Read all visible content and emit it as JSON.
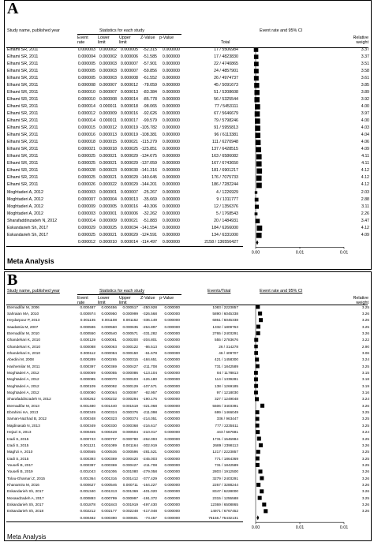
{
  "chart_data": [
    {
      "type": "forest",
      "panel": "A",
      "columns": {
        "study": "Study name, published year",
        "stats_group": "Statistics for each study",
        "event_rate": "Event rate",
        "lower": "Lower limit",
        "upper": "Upper limit",
        "z": "Z-Value",
        "p": "p-Value",
        "total": "Total",
        "plot_title": "Event rate and 95% CI",
        "weight": "Relative weight"
      },
      "x_ticks": [
        "0.00",
        "0.01",
        "0.01"
      ],
      "xlim": [
        0,
        0.01
      ],
      "rows": [
        [
          "Elhami SR, 2011",
          "0.000003",
          "0.000002",
          "0.000005",
          "-52.315",
          "0.000000",
          "17 / 5506984",
          "3.37"
        ],
        [
          "Elhami SR, 2011",
          "0.000004",
          "0.000002",
          "0.000006",
          "-51.585",
          "0.000000",
          "17 / 4823830",
          "3.37"
        ],
        [
          "Elhami SR, 2011",
          "0.000005",
          "0.000003",
          "0.000007",
          "-57.901",
          "0.000000",
          "22 / 4740865",
          "3.51"
        ],
        [
          "Elhami SR, 2011",
          "0.000005",
          "0.000003",
          "0.000007",
          "-59.856",
          "0.000000",
          "24 / 4857901",
          "3.58"
        ],
        [
          "Elhami SR, 2011",
          "0.000005",
          "0.000003",
          "0.000008",
          "-61.552",
          "0.000000",
          "26 / 4974737",
          "3.61"
        ],
        [
          "Elhami SR, 2011",
          "0.000008",
          "0.000007",
          "0.000012",
          "-78.059",
          "0.000000",
          "45 / 5091673",
          "3.85"
        ],
        [
          "Elhami SR, 2011",
          "0.000010",
          "0.000007",
          "0.000013",
          "-83.384",
          "0.000000",
          "51 / 5208608",
          "3.89"
        ],
        [
          "Elhami SR, 2011",
          "0.000010",
          "0.000008",
          "0.000014",
          "-85.778",
          "0.000000",
          "56 / 5325544",
          "3.92"
        ],
        [
          "Elhami SR, 2011",
          "0.000014",
          "0.000011",
          "0.000018",
          "-98.065",
          "0.000000",
          "77 / 5453111",
          "4.00"
        ],
        [
          "Elhami SR, 2011",
          "0.000012",
          "0.000009",
          "0.000016",
          "-92.626",
          "0.000000",
          "67 / 5646679",
          "3.97"
        ],
        [
          "Elhami SR, 2011",
          "0.000014",
          "0.000011",
          "0.000017",
          "-99.579",
          "0.000000",
          "79 / 5798246",
          "4.00"
        ],
        [
          "Elhami SR, 2011",
          "0.000015",
          "0.000012",
          "0.000019",
          "-105.782",
          "0.000000",
          "91 / 5955813",
          "4.03"
        ],
        [
          "Elhami SR, 2011",
          "0.000016",
          "0.000013",
          "0.000019",
          "-108.381",
          "0.000000",
          "96 / 6113381",
          "4.04"
        ],
        [
          "Elhami SR, 2011",
          "0.000018",
          "0.000015",
          "0.000021",
          "-115.279",
          "0.000000",
          "111 / 6270948",
          "4.06"
        ],
        [
          "Elhami SR, 2011",
          "0.000021",
          "0.000018",
          "0.000025",
          "-125.851",
          "0.000000",
          "137 / 6428515",
          "4.09"
        ],
        [
          "Elhami SR, 2011",
          "0.000025",
          "0.000021",
          "0.000029",
          "-134.675",
          "0.000000",
          "163 / 6586082",
          "4.11"
        ],
        [
          "Elhami SR, 2011",
          "0.000025",
          "0.000021",
          "0.000029",
          "-137.059",
          "0.000000",
          "167 / 6743650",
          "4.11"
        ],
        [
          "Elhami SR, 2011",
          "0.000028",
          "0.000023",
          "0.000030",
          "-141.316",
          "0.000000",
          "181 / 6901217",
          "4.12"
        ],
        [
          "Elhami SR, 2011",
          "0.000025",
          "0.000021",
          "0.000029",
          "-140.645",
          "0.000000",
          "176 / 7075733",
          "4.12"
        ],
        [
          "Elhami SR, 2011",
          "0.000026",
          "0.000022",
          "0.000029",
          "-144.201",
          "0.000000",
          "186 / 7282244",
          "4.12"
        ],
        [
          "Moghtaderi A, 2012",
          "0.000003",
          "0.000001",
          "0.000007",
          "-25.267",
          "0.000000",
          "4 / 1226929",
          "2.03"
        ],
        [
          "Moghtaderi A, 2012",
          "0.000007",
          "0.000004",
          "0.000013",
          "-35.669",
          "0.000000",
          "9 / 1311777",
          "2.88"
        ],
        [
          "Moghtaderi A, 2012",
          "0.000009",
          "0.000005",
          "0.000016",
          "-40.306",
          "0.000000",
          "12 / 1356376",
          "3.11"
        ],
        [
          "Moghtaderi A, 2012",
          "0.000003",
          "0.000001",
          "0.000006",
          "-32.262",
          "0.000000",
          "5 / 1768543",
          "2.26"
        ],
        [
          "Sharafaddinzadeh N, 2012",
          "0.000014",
          "0.000009",
          "0.000021",
          "-51.883",
          "0.000000",
          "20 / 1484931",
          "3.47"
        ],
        [
          "Eskandarieh Sh, 2017",
          "0.000029",
          "0.000025",
          "0.000034",
          "-141.554",
          "0.000000",
          "184 / 6266000",
          "4.12"
        ],
        [
          "Eskandarieh Sh, 2017",
          "0.000025",
          "0.000021",
          "0.000029",
          "-124.591",
          "0.000000",
          "134 / 6331000",
          "4.09"
        ],
        [
          "",
          "0.000012",
          "0.000010",
          "0.000014",
          "-114.497",
          "0.000000",
          "2158 / 136556427",
          ""
        ]
      ],
      "footer": "Meta Analysis"
    },
    {
      "type": "forest",
      "panel": "B",
      "columns": {
        "study": "Study name, published year",
        "stats_group": "Statistics for each study",
        "event_rate": "Event rate",
        "lower": "Lower limit",
        "upper": "Upper limit",
        "z": "Z-Value",
        "p": "p-Value",
        "total": "Events/Total",
        "plot_title": "Event rate and 95% CI",
        "weight": "Relative weight"
      },
      "x_ticks": [
        "0.00",
        "0.01",
        "0.01"
      ],
      "xlim": [
        0,
        0.01
      ],
      "rows": [
        [
          "Etemadifar M, 2006",
          "0.000487",
          "0.000456",
          "0.000517",
          "-250.928",
          "0.000000",
          "1083 / 2223857",
          "3.25"
        ],
        [
          "Sahraian MA, 2010",
          "0.000974",
          "0.000950",
          "0.000999",
          "-326.568",
          "0.000000",
          "5890 / 6045338",
          "3.26"
        ],
        [
          "Heydarpour P, 2013",
          "0.001135",
          "0.001108",
          "0.001162",
          "-336.149",
          "0.000000",
          "6861 / 6045338",
          "3.26"
        ],
        [
          "Saadatnia M, 2007",
          "0.000596",
          "0.000560",
          "0.000635",
          "-264.897",
          "0.000000",
          "1332 / 1809763",
          "3.25"
        ],
        [
          "Etemadifar M, 2010",
          "0.000550",
          "0.000540",
          "0.000571",
          "-331.282",
          "0.000000",
          "2765 / 2403291",
          "3.26"
        ],
        [
          "Ghandehari K, 2010",
          "0.000129",
          "0.000081",
          "0.000200",
          "-204.801",
          "0.000000",
          "555 / 2783676",
          "3.22"
        ],
        [
          "Ghandehari K, 2010",
          "0.000088",
          "0.000063",
          "0.000122",
          "-86.513",
          "0.000000",
          "26 / 314278",
          "2.90"
        ],
        [
          "Ghandehari K, 2010",
          "0.000112",
          "0.000084",
          "0.000150",
          "-61.678",
          "0.000000",
          "46 / 409707",
          "3.06"
        ],
        [
          "Abedini M, 2008",
          "0.000289",
          "0.000265",
          "0.000315",
          "-184.651",
          "0.000000",
          "421 / 1458300",
          "3.24"
        ],
        [
          "Hashemilar M, 2011",
          "0.000397",
          "0.000369",
          "0.000427",
          "-211.708",
          "0.000000",
          "731 / 1842589",
          "3.25"
        ],
        [
          "Moghtaderi A, 2012",
          "0.000069",
          "0.000055",
          "0.000086",
          "-113.104",
          "0.000000",
          "84 / 1178813",
          "3.15"
        ],
        [
          "Moghtaderi A, 2012",
          "0.000085",
          "0.000070",
          "0.000103",
          "-126.180",
          "0.000000",
          "114 / 1339281",
          "3.18"
        ],
        [
          "Moghtaderi A, 2012",
          "0.000109",
          "0.000092",
          "0.000129",
          "-107.571",
          "0.000000",
          "138 / 1269185",
          "3.19"
        ],
        [
          "Moghtaderi A, 2012",
          "0.000080",
          "0.000064",
          "0.000097",
          "-92.957",
          "0.000000",
          "97 / 1218030",
          "3.16"
        ],
        [
          "Sharafaddinzadeh N, 2012",
          "0.000262",
          "0.000232",
          "0.000294",
          "-190.176",
          "0.000000",
          "327 / 1249048",
          "3.24"
        ],
        [
          "Etemadifar M, 2013",
          "0.001480",
          "0.001440",
          "0.001519",
          "-321.068",
          "0.000000",
          "5506 / 3403391",
          "3.26"
        ],
        [
          "Ebrahimi HA, 2013",
          "0.000349",
          "0.000324",
          "0.000376",
          "-211.098",
          "0.000000",
          "699 / 1466049",
          "3.25"
        ],
        [
          "Saman-Nazhad B, 2012",
          "0.000348",
          "0.000323",
          "0.000374",
          "-214.051",
          "0.000000",
          "336 / 963447",
          "3.25"
        ],
        [
          "Majdinasab N, 2013",
          "0.000349",
          "0.000330",
          "0.000368",
          "-216.617",
          "0.000000",
          "777 / 2235511",
          "3.25"
        ],
        [
          "Hejazi S, 2013",
          "0.000465",
          "0.000428",
          "0.000504",
          "-210.017",
          "0.000000",
          "443 / 587681",
          "3.24"
        ],
        [
          "Izadi S, 2015",
          "0.000743",
          "0.000707",
          "0.000780",
          "-262.093",
          "0.000000",
          "1731 / 1546984",
          "3.25"
        ],
        [
          "Izadi S, 2015",
          "0.001121",
          "0.001089",
          "0.001164",
          "-302.919",
          "0.000000",
          "2689 / 2398113",
          "3.26"
        ],
        [
          "Maghzi A, 2010",
          "0.000565",
          "0.000536",
          "0.000596",
          "-281.521",
          "0.000000",
          "1217 / 2223857",
          "3.25"
        ],
        [
          "Izadi S, 2015",
          "0.000393",
          "0.000369",
          "0.000420",
          "-245.003",
          "0.000000",
          "771 / 1864369",
          "3.25"
        ],
        [
          "Yousefi B, 2017",
          "0.000397",
          "0.000369",
          "0.000427",
          "-211.708",
          "0.000000",
          "731 / 1842589",
          "3.25"
        ],
        [
          "Yousefi B, 2019",
          "0.001043",
          "0.001006",
          "0.001080",
          "-279.058",
          "0.000000",
          "2803 / 1912500",
          "3.26"
        ],
        [
          "Tolou-Ghamari Z, 2015",
          "0.001364",
          "0.001316",
          "0.001412",
          "-377.429",
          "0.000000",
          "3279 / 2403291",
          "3.26"
        ],
        [
          "Khanamira M, 2016",
          "0.000627",
          "0.000546",
          "0.000711",
          "-164.227",
          "0.000000",
          "2267 / 3288244",
          "3.26"
        ],
        [
          "Eskandarieh Sh, 2017",
          "0.001340",
          "0.001313",
          "0.001369",
          "-401.020",
          "0.000000",
          "8347 / 6228000",
          "3.26"
        ],
        [
          "Mosaadzadeh A, 2017",
          "0.000893",
          "0.000799",
          "0.000997",
          "-191.372",
          "0.000000",
          "2315 / 1255588",
          "3.25"
        ],
        [
          "Eskandarieh Sh, 2017",
          "0.001878",
          "0.001843",
          "0.001919",
          "-497.430",
          "0.000000",
          "12369 / 6508865",
          "3.26"
        ],
        [
          "Eskandarieh Sh, 2018",
          "0.002212",
          "0.002177",
          "0.002248",
          "-417.048",
          "0.000000",
          "14971 / 6767452",
          "3.26"
        ],
        [
          "",
          "0.000482",
          "0.000390",
          "0.000601",
          "-73.457",
          "0.000000",
          "76156 / 75432131",
          ""
        ]
      ],
      "footer": "Meta Analysis"
    }
  ]
}
